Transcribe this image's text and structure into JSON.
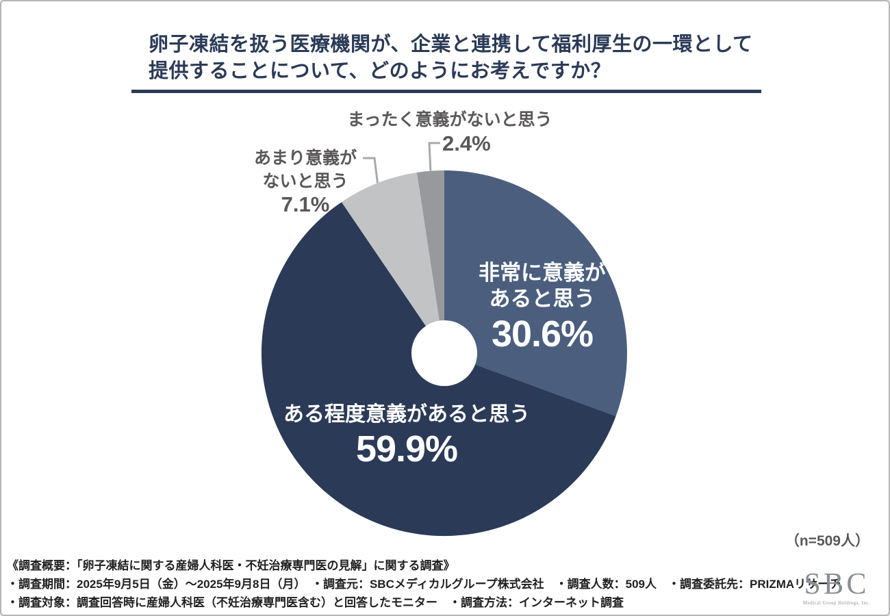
{
  "header": {
    "title_line1": "卵子凍結を扱う医療機関が、企業と連携して福利厚生の一環として",
    "title_line2": "提供することについて、どのようにお考えですか？"
  },
  "chart_data": {
    "type": "pie",
    "title": "卵子凍結を扱う医療機関が、企業と連携して福利厚生の一環として提供することについて、どのようにお考えですか？",
    "donut": true,
    "start_angle_deg": 0,
    "direction": "clockwise",
    "sample_size": 509,
    "n_label": "（n=509人）",
    "slices": [
      {
        "label": "非常に意義があると思う",
        "value_pct": 30.6,
        "pct_label": "30.6%",
        "color": "#4b5e7e",
        "label_placement": "inside",
        "label_lines": [
          "非常に意義が",
          "あると思う"
        ]
      },
      {
        "label": "ある程度意義があると思う",
        "value_pct": 59.9,
        "pct_label": "59.9%",
        "color": "#2b3a57",
        "label_placement": "inside",
        "label_lines": [
          "ある程度意義があると思う"
        ]
      },
      {
        "label": "あまり意義がないと思う",
        "value_pct": 7.1,
        "pct_label": "7.1%",
        "color": "#c2c3c5",
        "label_placement": "outside",
        "label_lines": [
          "あまり意義が",
          "ないと思う"
        ]
      },
      {
        "label": "まったく意義がないと思う",
        "value_pct": 2.4,
        "pct_label": "2.4%",
        "color": "#97999d",
        "label_placement": "outside",
        "label_lines": [
          "まったく意義がないと思う"
        ]
      }
    ]
  },
  "footer": {
    "line1": "《調査概要：「卵子凍結に関する産婦人科医・不妊治療専門医の見解」に関する調査》",
    "line2": "・調査期間：2025年9月5日（金）～2025年9月8日（月）　・調査元：SBCメディカルグループ株式会社　・調査人数：509人　・調査委託先：PRIZMAリサーチ",
    "line3": "・調査対象：調査回答時に産婦人科医（不妊治療専門医含む）と回答したモニター　・調査方法：インターネット調査"
  },
  "logo": {
    "mark": "SBC",
    "subtitle": "Medical Group Holdings, Inc."
  },
  "colors": {
    "title_text": "#2b3a56",
    "title_rule": "#2b3a56",
    "outside_label": "#595757",
    "leader_line": "#a8a9ab",
    "footer_text": "#1f1f1f",
    "logo": "#8b8f94",
    "donut_hole": "#ffffff"
  }
}
